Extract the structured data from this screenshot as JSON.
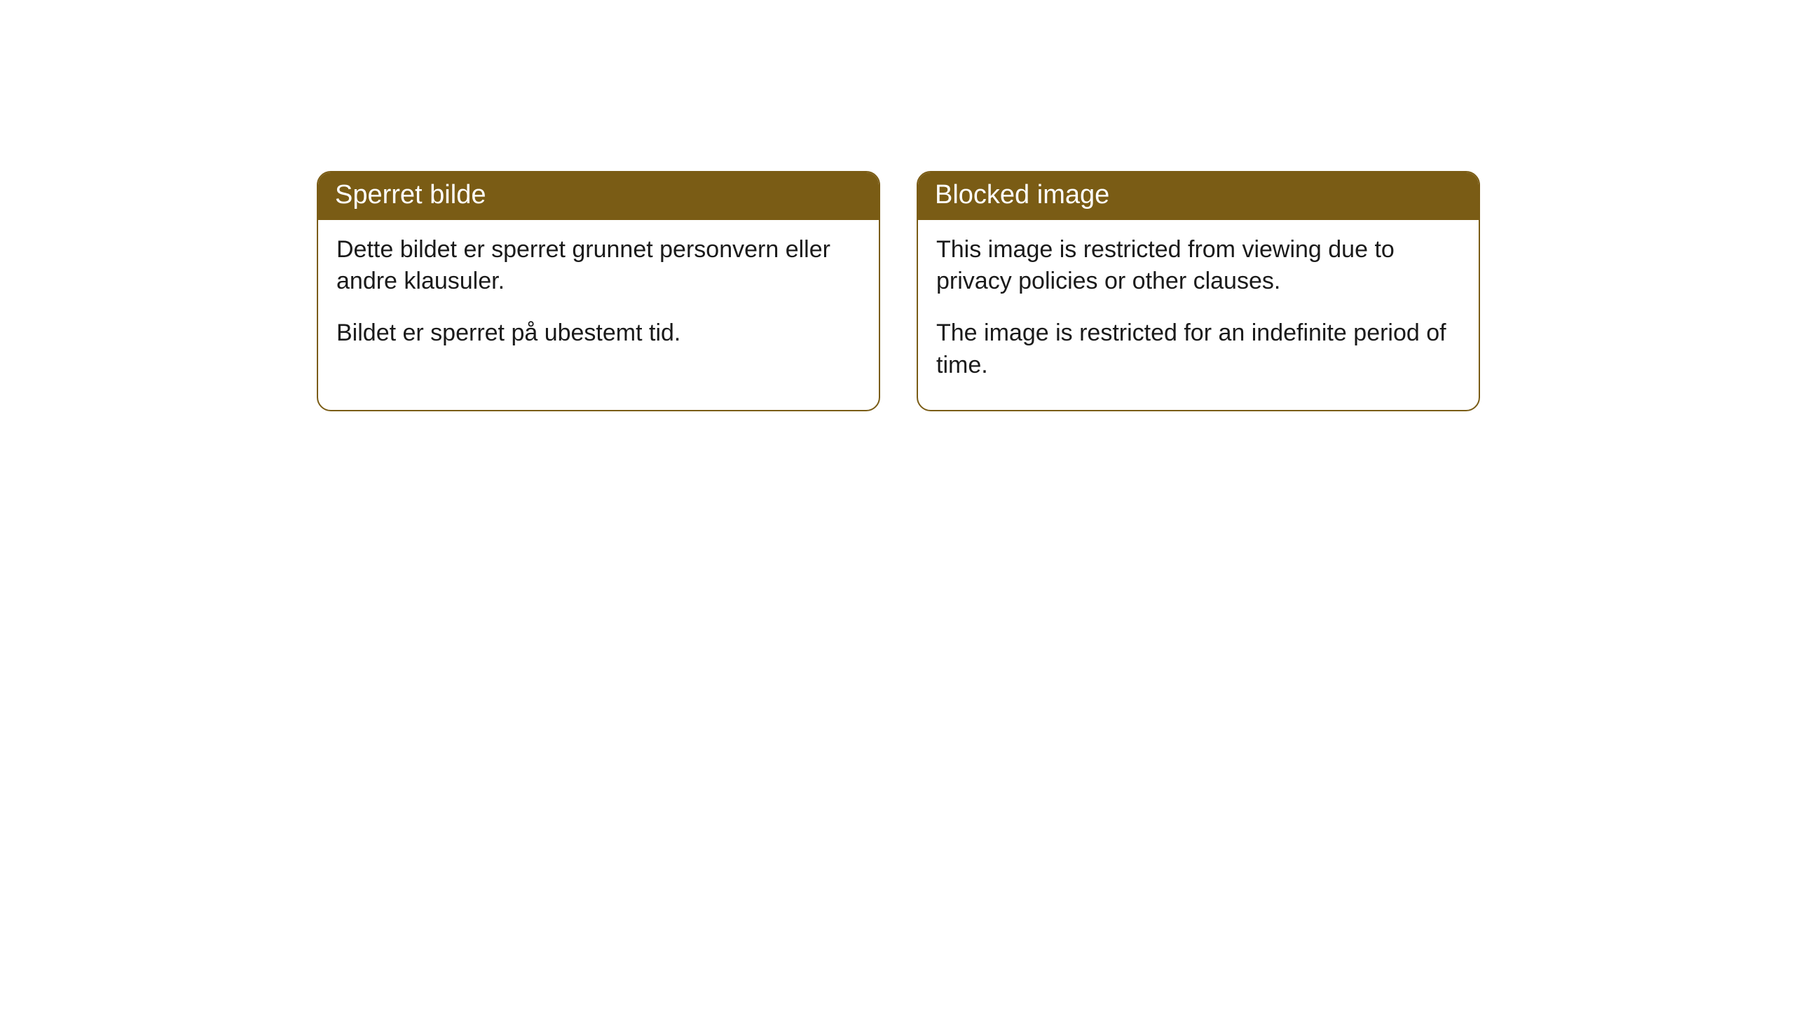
{
  "cards": [
    {
      "title": "Sperret bilde",
      "paragraph1": "Dette bildet er sperret grunnet personvern eller andre klausuler.",
      "paragraph2": "Bildet er sperret på ubestemt tid."
    },
    {
      "title": "Blocked image",
      "paragraph1": "This image is restricted from viewing due to privacy policies or other clauses.",
      "paragraph2": "The image is restricted for an indefinite period of time."
    }
  ],
  "styling": {
    "header_background": "#7a5c15",
    "header_text_color": "#ffffff",
    "border_color": "#7a5c15",
    "body_text_color": "#1a1a1a",
    "page_background": "#ffffff",
    "border_radius": 20,
    "title_fontsize": 38,
    "body_fontsize": 34
  }
}
